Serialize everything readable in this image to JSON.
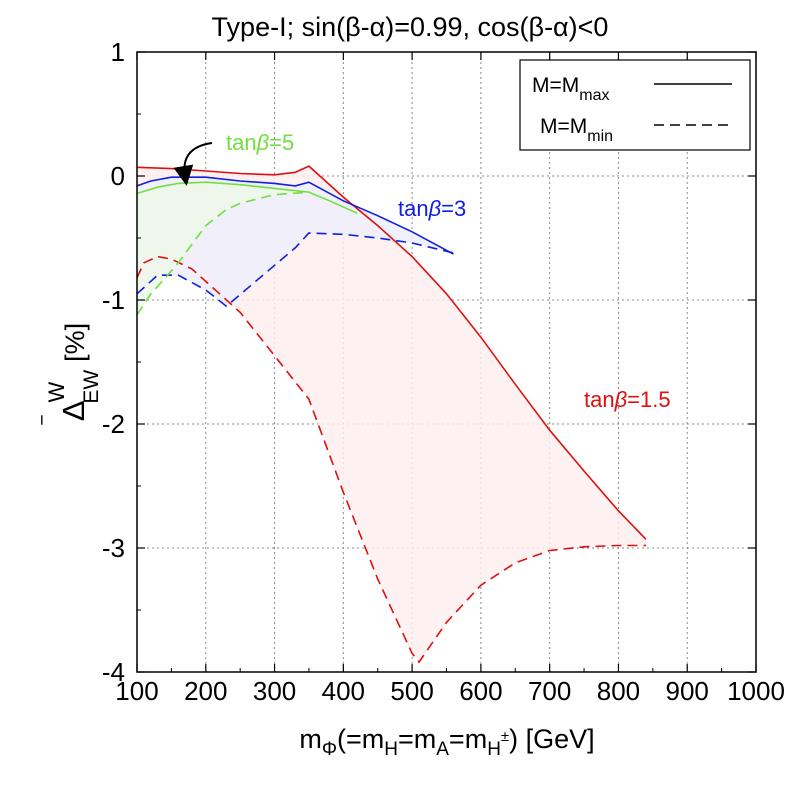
{
  "chart_data": {
    "type": "line",
    "title": "Type-I; sin(β-α)=0.99, cos(β-α)<0",
    "xlabel": "m",
    "xlabel_sub": "Φ",
    "xlabel_rest": "(=m",
    "xlabel_parts": [
      "H",
      "=m",
      "A",
      "=m",
      "H",
      "±",
      ") [GeV]"
    ],
    "ylabel_main": "Δ",
    "ylabel_bar": "‾",
    "ylabel_sup": "W",
    "ylabel_sub": "EW",
    "ylabel_unit": "[%]",
    "xlim": [
      100,
      1000
    ],
    "ylim": [
      -4,
      1
    ],
    "xticks": [
      "100",
      "200",
      "300",
      "400",
      "500",
      "600",
      "700",
      "800",
      "900",
      "1000"
    ],
    "yticks": [
      "1",
      "0",
      "-1",
      "-2",
      "-3",
      "-4"
    ],
    "grid": true,
    "legend": {
      "position": "top-right",
      "items": [
        {
          "label_main": "M=M",
          "label_sub": "max",
          "style": "solid"
        },
        {
          "label_main": "M=M",
          "label_sub": "min",
          "style": "dashed"
        }
      ]
    },
    "series": [
      {
        "name": "tanβ=1.5",
        "label_pre": "tan",
        "label_beta": "β",
        "label_post": "=1.5",
        "color": "#e01010",
        "fill": "#fdeeee",
        "max": {
          "x": [
            100,
            150,
            200,
            250,
            300,
            330,
            350,
            400,
            450,
            500,
            550,
            600,
            650,
            700,
            750,
            800,
            840
          ],
          "y": [
            0.07,
            0.06,
            0.04,
            0.02,
            0.01,
            0.03,
            0.08,
            -0.17,
            -0.4,
            -0.65,
            -0.95,
            -1.3,
            -1.68,
            -2.05,
            -2.38,
            -2.7,
            -2.93
          ]
        },
        "min": {
          "x": [
            100,
            110,
            130,
            150,
            180,
            200,
            250,
            300,
            350,
            400,
            450,
            500,
            510,
            550,
            600,
            650,
            700,
            750,
            800,
            840
          ],
          "y": [
            -0.82,
            -0.7,
            -0.65,
            -0.67,
            -0.75,
            -0.85,
            -1.1,
            -1.45,
            -1.8,
            -2.55,
            -3.25,
            -3.85,
            -3.92,
            -3.6,
            -3.3,
            -3.12,
            -3.02,
            -2.99,
            -2.98,
            -2.98
          ]
        }
      },
      {
        "name": "tanβ=3",
        "label_pre": "tan",
        "label_beta": "β",
        "label_post": "=3",
        "color": "#1020e0",
        "fill": "#eeeefc",
        "max": {
          "x": [
            100,
            120,
            150,
            200,
            250,
            300,
            330,
            350,
            400,
            450,
            500,
            560
          ],
          "y": [
            -0.08,
            -0.04,
            -0.01,
            -0.01,
            -0.04,
            -0.06,
            -0.08,
            -0.05,
            -0.2,
            -0.32,
            -0.45,
            -0.63
          ]
        },
        "min": {
          "x": [
            100,
            130,
            160,
            200,
            230,
            245,
            300,
            330,
            350,
            400,
            450,
            500,
            560
          ],
          "y": [
            -0.95,
            -0.8,
            -0.8,
            -0.92,
            -1.05,
            -0.98,
            -0.72,
            -0.58,
            -0.46,
            -0.47,
            -0.5,
            -0.54,
            -0.62
          ]
        }
      },
      {
        "name": "tanβ=5",
        "label_pre": "tan",
        "label_beta": "β",
        "label_post": "=5",
        "color": "#70e040",
        "fill": "#eef8ea",
        "max": {
          "x": [
            100,
            130,
            160,
            200,
            250,
            300,
            350,
            380,
            420
          ],
          "y": [
            -0.14,
            -0.09,
            -0.06,
            -0.05,
            -0.07,
            -0.1,
            -0.13,
            -0.2,
            -0.3
          ]
        },
        "min": {
          "x": [
            100,
            120,
            140,
            160,
            180,
            200,
            230,
            250,
            300,
            350
          ],
          "y": [
            -1.12,
            -0.95,
            -0.83,
            -0.7,
            -0.55,
            -0.4,
            -0.27,
            -0.22,
            -0.15,
            -0.13
          ]
        }
      }
    ],
    "annotation": {
      "text": "arrow",
      "x": 165,
      "y": -0.02
    }
  }
}
